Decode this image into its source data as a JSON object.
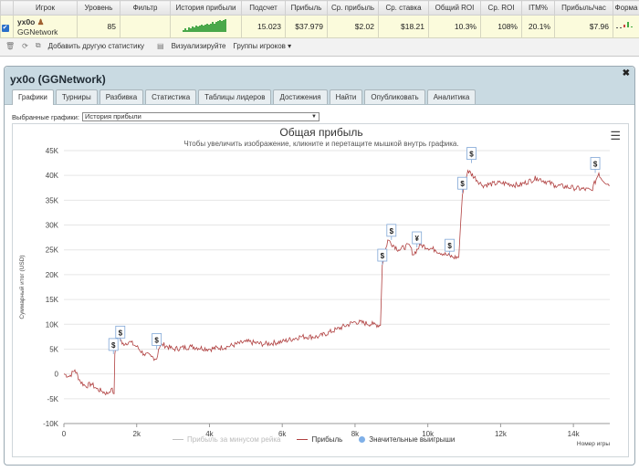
{
  "stats": {
    "columns": [
      "",
      "Игрок",
      "Уровень",
      "Фильтр",
      "История прибыли",
      "Подсчет",
      "Прибыль",
      "Ср. прибыль",
      "Ср. ставка",
      "Общий ROI",
      "Ср. ROI",
      "ITM%",
      "Прибыль/час",
      "Форма"
    ],
    "row": {
      "player": "yx0o",
      "network": "GGNetwork",
      "level": "85",
      "count": "15.023",
      "profit": "$37.979",
      "avg_profit": "$2.02",
      "avg_stake": "$18.21",
      "total_roi": "10.3%",
      "avg_roi": "108%",
      "itm": "20.1%",
      "profit_hour": "$7.96"
    },
    "spark": [
      2,
      3,
      2,
      4,
      3,
      5,
      4,
      6,
      5,
      6,
      7,
      6,
      7,
      8,
      7,
      8,
      9,
      8,
      9,
      10,
      11,
      10,
      11,
      12
    ]
  },
  "toolbar": {
    "add_stat": "Добавить другую статистику",
    "visualize": "Визуализируйте",
    "groups": "Группы игроков"
  },
  "panel": {
    "title": "yx0o (GGNetwork)",
    "tabs": [
      "Графики",
      "Турниры",
      "Разбивка",
      "Статистика",
      "Таблицы лидеров",
      "Достижения",
      "Найти",
      "Опубликовать",
      "Аналитика"
    ],
    "select_label": "Выбранные графики:",
    "select_value": "История прибыли"
  },
  "chart_data": {
    "type": "line",
    "title": "Общая прибыль",
    "subtitle": "Чтобы увеличить изображение, кликните и перетащите мышкой внутрь графика.",
    "ylabel": "Суммарный итог (USD)",
    "xlabel": "Номер игры",
    "ylim": [
      -10000,
      45000
    ],
    "xlim": [
      0,
      15000
    ],
    "yticks": [
      "-10K",
      "-5K",
      "0",
      "5K",
      "10K",
      "15K",
      "20K",
      "25K",
      "30K",
      "35K",
      "40K",
      "45K"
    ],
    "xticks": [
      "0",
      "2k",
      "4k",
      "6k",
      "8k",
      "10k",
      "12k",
      "14k"
    ],
    "series": [
      {
        "name": "Прибыль",
        "color": "#b04040",
        "x": [
          0,
          150,
          300,
          450,
          600,
          750,
          900,
          1050,
          1200,
          1300,
          1380,
          1400,
          1500,
          1600,
          1800,
          2000,
          2200,
          2400,
          2550,
          2600,
          2700,
          3000,
          3500,
          4000,
          4500,
          5000,
          5500,
          6000,
          6500,
          7000,
          7500,
          8000,
          8500,
          8700,
          8750,
          8900,
          9200,
          9500,
          9600,
          9800,
          10200,
          10500,
          10700,
          10850,
          10900,
          10950,
          11100,
          11500,
          12000,
          12500,
          13000,
          13500,
          14000,
          14500,
          14700,
          14750,
          15000
        ],
        "y": [
          0,
          -500,
          800,
          -1500,
          -2500,
          -2000,
          -3000,
          -3500,
          -4000,
          -3000,
          -4000,
          4000,
          8000,
          6000,
          6500,
          5500,
          4000,
          3500,
          3000,
          5000,
          6000,
          5000,
          5500,
          5000,
          5500,
          6500,
          6000,
          6500,
          7500,
          7500,
          9000,
          10500,
          10000,
          9800,
          22000,
          27000,
          25000,
          26000,
          24000,
          26000,
          25000,
          24000,
          23500,
          23500,
          30000,
          36000,
          41000,
          38000,
          38500,
          38000,
          39500,
          38000,
          37500,
          37000,
          40500,
          39500,
          38000
        ]
      },
      {
        "name": "Прибыль за минусом рейка",
        "color": "#c8c8c8",
        "x": [],
        "y": []
      }
    ],
    "markers": [
      {
        "x": 1360,
        "y": 4000,
        "label": "$"
      },
      {
        "x": 1550,
        "y": 6500,
        "label": "$"
      },
      {
        "x": 2550,
        "y": 5000,
        "label": "$"
      },
      {
        "x": 8750,
        "y": 22000,
        "label": "$"
      },
      {
        "x": 9000,
        "y": 27000,
        "label": "$"
      },
      {
        "x": 9700,
        "y": 25500,
        "label": "¥"
      },
      {
        "x": 10600,
        "y": 24000,
        "label": "$"
      },
      {
        "x": 10950,
        "y": 36500,
        "label": "$"
      },
      {
        "x": 11200,
        "y": 42500,
        "label": "$"
      },
      {
        "x": 14600,
        "y": 40500,
        "label": "$"
      }
    ],
    "legend": [
      "Прибыль за минусом рейка",
      "Прибыль",
      "Значительные выигрыши"
    ],
    "legend_position": "bottom"
  }
}
